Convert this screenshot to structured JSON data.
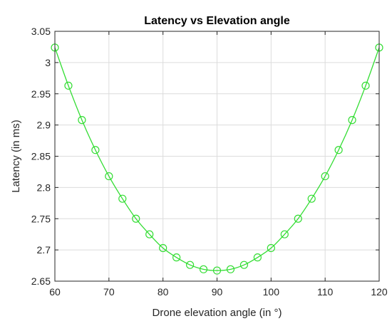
{
  "chart_data": {
    "type": "line",
    "title": "Latency vs Elevation angle",
    "xlabel": "Drone elevation angle (in °)",
    "ylabel": "Latency (in ms)",
    "xlim": [
      60,
      120
    ],
    "ylim": [
      2.65,
      3.05
    ],
    "xticks": [
      60,
      70,
      80,
      90,
      100,
      110,
      120
    ],
    "xtick_labels": [
      "60",
      "70",
      "80",
      "90",
      "100",
      "110",
      "120"
    ],
    "yticks": [
      2.65,
      2.7,
      2.75,
      2.8,
      2.85,
      2.9,
      2.95,
      3,
      3.05
    ],
    "ytick_labels": [
      "2.65",
      "2.7",
      "2.75",
      "2.8",
      "2.85",
      "2.9",
      "2.95",
      "3",
      "3.05"
    ],
    "grid": true,
    "legend": false,
    "marker": "circle",
    "color": "#33dd33",
    "series": [
      {
        "x": [
          60,
          62.5,
          65,
          67.5,
          70,
          72.5,
          75,
          77.5,
          80,
          82.5,
          85,
          87.5,
          90,
          92.5,
          95,
          97.5,
          100,
          102.5,
          105,
          107.5,
          110,
          112.5,
          115,
          117.5,
          120
        ],
        "values": [
          3.024,
          2.963,
          2.908,
          2.86,
          2.818,
          2.782,
          2.75,
          2.725,
          2.703,
          2.688,
          2.676,
          2.669,
          2.667,
          2.669,
          2.676,
          2.688,
          2.703,
          2.725,
          2.75,
          2.782,
          2.818,
          2.86,
          2.908,
          2.963,
          3.024
        ]
      }
    ]
  }
}
